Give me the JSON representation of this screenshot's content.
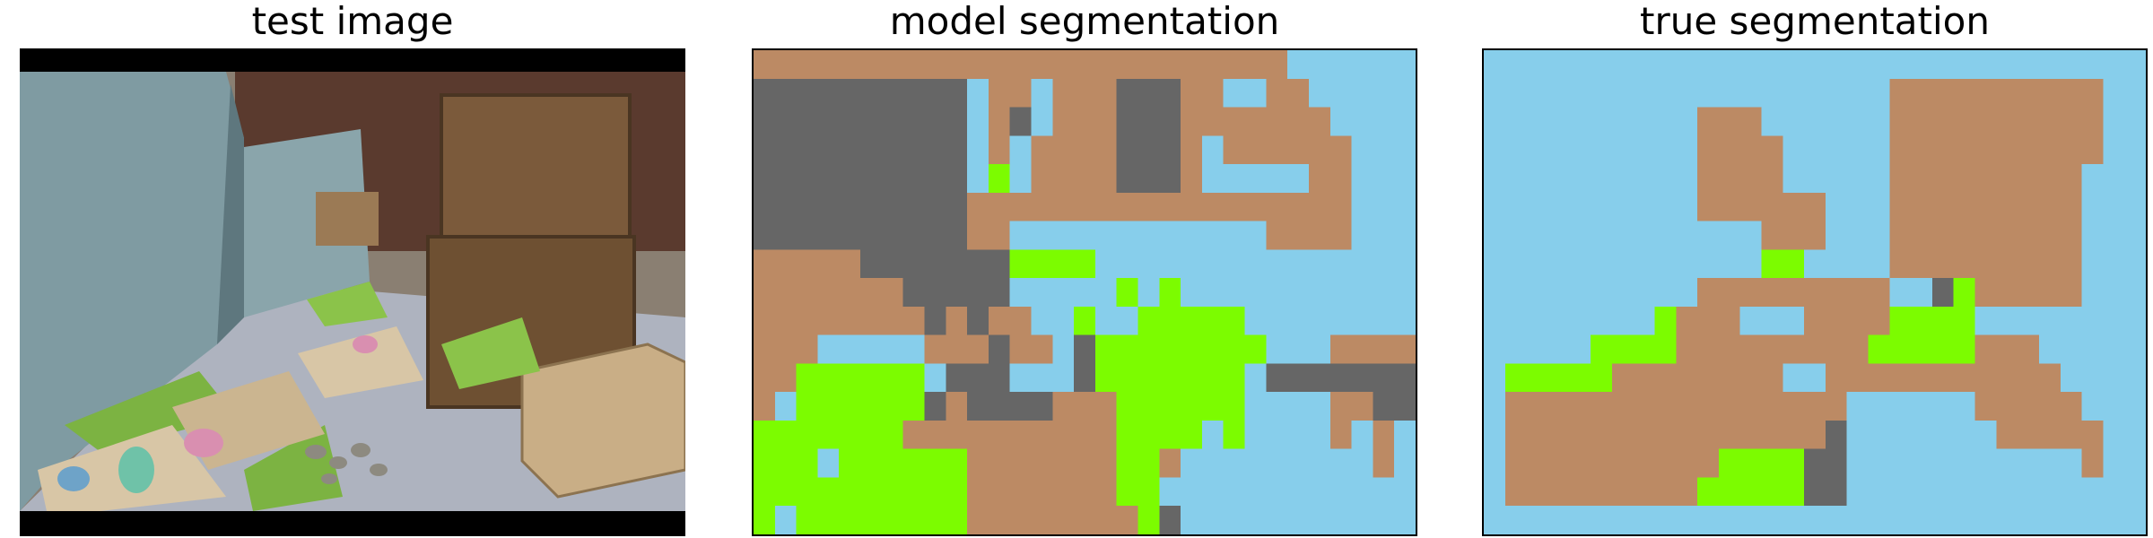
{
  "panels": {
    "test": {
      "title": "test image"
    },
    "model": {
      "title": "model segmentation"
    },
    "truth": {
      "title": "true segmentation"
    }
  },
  "palette": {
    "0": "#87ceeb",
    "1": "#bc8a64",
    "2": "#666666",
    "3": "#7cfc00"
  },
  "photo_colors": {
    "letterbox": "#000000",
    "wall": "#7f9ba2",
    "wall_shadow": "#5e777e",
    "brick": "#5a3a2e",
    "crate": "#7b5a3b",
    "crate_dark": "#58412a",
    "floor": "#aeb3bf",
    "grass": "#8bc34a",
    "board": "#d8c6a6",
    "pallet": "#c9ae86"
  },
  "segmentation": {
    "model": [
      "1111111111111111111111111000000",
      "1111111111111111111111111000000",
      "2222222222011011122211001100000",
      "2222222222011011122211001100000",
      "2222222222012011122211111110000",
      "2222222222012011122211111110000",
      "2222222222010111122210111111000",
      "2222222222010111122210111111000",
      "2222222222030111122210000011000",
      "2222222222030111122210000011000",
      "2222222222111111111111111111000",
      "2222222222111111111111111111000",
      "2222222222110000000000001111000",
      "2222222222110000000000001111000",
      "1111122222223333000000000000000",
      "1111122222223333000000000000000",
      "1111111222220000030300000000000",
      "1111111222220000030300000000000",
      "1111111121211003003333300000000",
      "1111111121211003003333300000000",
      "1110000011121102333333330001111",
      "1110000011121102333333330001111",
      "1133333302220002333333302222222",
      "1133333302220002333333302222222",
      "1033333321222211133333300001122",
      "1033333321222211133333300001122",
      "3333333111111111133330300001010",
      "3333333111111111133330300001010",
      "3330333333111111133100000000010",
      "3330333333111111133100000000010",
      "3333333333111111133000000000000",
      "3333333333111111133000000000000",
      "3033333333111111113200000000000",
      "3033333333111111113200000000000"
    ],
    "truth": [
      "0000000000000000000000000000000",
      "0000000000000000000000000000000",
      "0000000000000000000111111111100",
      "0000000000000000000111111111100",
      "0000000000111000000111111111100",
      "0000000000111000000111111111100",
      "0000000000111100000111111111100",
      "0000000000111100000111111111100",
      "0000000000111100000111111111000",
      "0000000000111100000111111111000",
      "0000000000111111000111111111000",
      "0000000000111111000111111111000",
      "0000000000000111000111111111000",
      "0000000000000111000111111111000",
      "0000000000000330000111111111000",
      "0000000000000330000111111111000",
      "0000000000111111111002311111000",
      "0000000000111111111002311111000",
      "0000000031110001111333300000000",
      "0000000031110001111333300000000",
      "0000033331111111113333311100000",
      "0000033331111111113333311100000",
      "0333331111111100111111111110000",
      "0333331111111100111111111110000",
      "0111111111111111100000011111000",
      "0111111111111111100000011111000",
      "0111111111111111200000001111100",
      "0111111111111111200000001111100",
      "0111111111133332200000000000100",
      "0111111111133332200000000000100",
      "0111111111333332200000000000000",
      "0111111111333332200000000000000",
      "0000000000000000000000000000000",
      "0000000000000000000000000000000"
    ]
  }
}
